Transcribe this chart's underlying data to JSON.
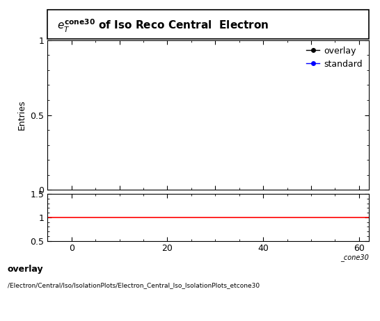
{
  "xlabel": "_cone30",
  "ylabel_main": "Entries",
  "xlim": [
    -5,
    62
  ],
  "xticks": [
    0,
    20,
    40,
    60
  ],
  "ylim_main": [
    0,
    1
  ],
  "yticks_main": [
    0,
    0.5,
    1
  ],
  "ylim_ratio": [
    0.5,
    1.5
  ],
  "yticks_ratio": [
    0.5,
    1,
    1.5
  ],
  "legend_entries": [
    "overlay",
    "standard"
  ],
  "legend_colors": [
    "black",
    "blue"
  ],
  "ratio_line_color": "red",
  "ratio_line_y": 1.0,
  "footer_text1": "overlay",
  "footer_text2": "/Electron/Central/Iso/IsolationPlots/Electron_Central_Iso_IsolationPlots_etcone30",
  "background_color": "#ffffff",
  "title_label": "e",
  "title_superscript": "cone30",
  "title_subscript": "T",
  "title_rest": " of Iso Reco Central  Electron"
}
